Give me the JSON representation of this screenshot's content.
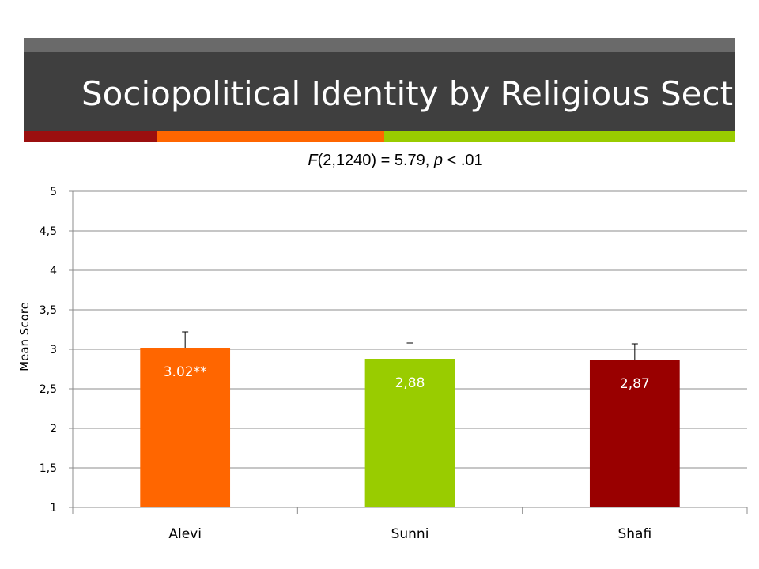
{
  "slide": {
    "title": "Sociopolitical Identity by Religious Sect",
    "stat_prefix": "F",
    "stat_middle": "(2,1240) = 5.79, ",
    "stat_p": "p",
    "stat_suffix": " < .01"
  },
  "colors": {
    "title_band": "#3f3f3f",
    "title_band_top": "#6a6a6a",
    "accent_red": "#9b0f0f",
    "accent_orange": "#ff6600",
    "accent_green": "#99cc00"
  },
  "chart_data": {
    "type": "bar",
    "title": "",
    "xlabel": "",
    "ylabel": "Mean Score",
    "ylim": [
      1,
      5
    ],
    "yticks": [
      1,
      1.5,
      2,
      2.5,
      3,
      3.5,
      4,
      4.5,
      5
    ],
    "ytick_labels": [
      "1",
      "1,5",
      "2",
      "2,5",
      "3",
      "3,5",
      "4",
      "4,5",
      "5"
    ],
    "grid": true,
    "legend": "none",
    "categories": [
      "Alevi",
      "Sunni",
      "Shafi"
    ],
    "values": [
      3.02,
      2.88,
      2.87
    ],
    "error_upper": [
      0.2,
      0.2,
      0.2
    ],
    "data_labels": [
      "3.02**",
      "2,88",
      "2,87"
    ],
    "bar_colors": [
      "#ff6600",
      "#99cc00",
      "#990000"
    ]
  }
}
